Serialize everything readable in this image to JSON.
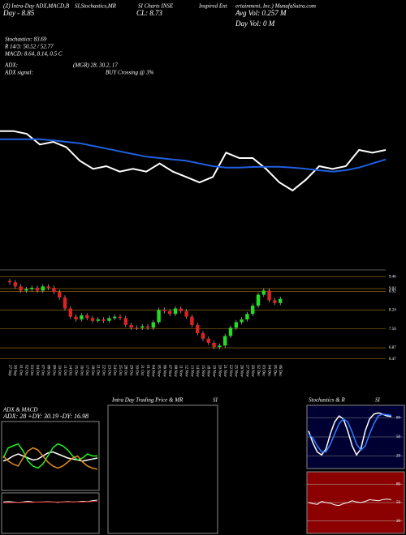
{
  "header": {
    "line1": [
      "(Z) Intra-Day ADX,MACD,B",
      "SI,Stochastics,MR",
      "SI Charts INSE",
      "Inspired Ent",
      "ertainment, Inc.) MunafaSutra.com"
    ],
    "day": "Day - 8.85",
    "close": "CL: 8.73",
    "avg_vol": "Avg Vol: 0.257 M",
    "day_vol": "Day Vol: 0  M",
    "stoch": "Stochastics: 83.69",
    "r": "R 14/3: 50.52 / 52.77",
    "macd": "MACD: 8.64, 8.14, 0.5 C",
    "adx": "ADX:",
    "adx_vals": "(MGR) 28, 30.2, 17",
    "adx_signal": "ADX  signal:",
    "signal": "BUY Crossing @ 3%"
  },
  "chart_data": [
    {
      "type": "line",
      "ylim": [
        6.8,
        9.8
      ],
      "series": [
        {
          "color": "#ffffff",
          "values": [
            9.3,
            9.3,
            9.2,
            8.8,
            8.9,
            8.7,
            8.2,
            7.9,
            8.0,
            7.8,
            7.9,
            7.8,
            8.1,
            7.8,
            7.6,
            7.4,
            7.6,
            8.5,
            8.3,
            8.3,
            7.9,
            7.4,
            7.1,
            7.5,
            8.0,
            7.9,
            8.0,
            8.6,
            8.5,
            8.6
          ]
        },
        {
          "color": "#1f5fe0",
          "values": [
            9.0,
            9.0,
            9.0,
            9.0,
            8.95,
            8.9,
            8.85,
            8.75,
            8.65,
            8.55,
            8.45,
            8.35,
            8.3,
            8.25,
            8.2,
            8.1,
            8.0,
            7.95,
            7.95,
            7.97,
            7.98,
            7.98,
            7.95,
            7.9,
            7.85,
            7.8,
            7.85,
            7.95,
            8.1,
            8.25
          ]
        }
      ]
    },
    {
      "type": "candlestick",
      "ylim": [
        6.4,
        9.7
      ],
      "yticks": [
        9.46,
        9.02,
        8.92,
        8.24,
        7.56,
        6.87,
        6.47
      ],
      "grid": true,
      "up_color": "#22dd22",
      "down_color": "#dd2222",
      "categories": [
        "27 Sep",
        "30 Sep",
        "01 Oct",
        "02 Oct",
        "03 Oct",
        "04 Oct",
        "07 Oct",
        "08 Oct",
        "09 Oct",
        "10 Oct",
        "11 Oct",
        "14 Oct",
        "15 Oct",
        "16 Oct",
        "17 Oct",
        "18 Oct",
        "21 Oct",
        "22 Oct",
        "23 Oct",
        "24 Oct",
        "25 Oct",
        "28 Oct",
        "29 Oct",
        "30 Oct",
        "31 Oct",
        "01 Nov",
        "04 Nov",
        "05 Nov",
        "06 Nov",
        "07 Nov",
        "08 Nov",
        "11 Nov",
        "12 Nov",
        "13 Nov",
        "14 Nov",
        "15 Nov",
        "18 Nov",
        "19 Nov",
        "20 Nov",
        "21 Nov",
        "22 Nov",
        "25 Nov",
        "26 Nov",
        "27 Nov",
        "29 Nov",
        "02 Dec",
        "03 Dec",
        "04 Dec",
        "05 Dec",
        "06 Dec"
      ],
      "open": [
        9.3,
        9.25,
        9.1,
        8.95,
        9.0,
        9.05,
        8.95,
        9.1,
        9.05,
        8.9,
        8.7,
        8.3,
        8.0,
        7.9,
        8.05,
        7.95,
        7.85,
        7.9,
        7.85,
        7.95,
        8.0,
        7.95,
        7.7,
        7.6,
        7.6,
        7.65,
        7.6,
        7.8,
        8.25,
        8.2,
        8.1,
        8.3,
        8.2,
        8.0,
        7.7,
        7.4,
        7.2,
        7.05,
        6.9,
        6.95,
        7.3,
        7.6,
        7.8,
        7.9,
        8.1,
        8.4,
        8.8,
        8.95,
        8.6,
        8.5
      ],
      "high": [
        9.38,
        9.33,
        9.18,
        9.08,
        9.13,
        9.13,
        9.18,
        9.18,
        9.13,
        8.98,
        8.78,
        8.38,
        8.08,
        8.13,
        8.13,
        8.03,
        7.98,
        7.98,
        8.03,
        8.08,
        8.08,
        8.03,
        7.78,
        7.68,
        7.73,
        7.73,
        7.88,
        8.33,
        8.33,
        8.28,
        8.38,
        8.38,
        8.28,
        8.08,
        7.78,
        7.48,
        7.28,
        7.13,
        7.03,
        7.38,
        7.68,
        7.88,
        7.98,
        8.18,
        8.48,
        8.88,
        9.03,
        9.03,
        8.68,
        8.73
      ],
      "low": [
        9.17,
        9.02,
        8.87,
        8.87,
        8.92,
        8.87,
        8.87,
        8.97,
        8.82,
        8.62,
        8.22,
        7.92,
        7.82,
        7.82,
        7.87,
        7.77,
        7.77,
        7.77,
        7.77,
        7.87,
        7.87,
        7.62,
        7.52,
        7.52,
        7.52,
        7.52,
        7.52,
        7.72,
        8.12,
        8.02,
        8.02,
        8.12,
        7.92,
        7.62,
        7.32,
        7.12,
        6.97,
        6.82,
        6.82,
        6.87,
        7.22,
        7.52,
        7.72,
        7.82,
        8.02,
        8.32,
        8.72,
        8.52,
        8.42,
        8.42
      ],
      "close": [
        9.25,
        9.1,
        8.95,
        9.0,
        9.05,
        8.95,
        9.1,
        9.05,
        8.9,
        8.7,
        8.3,
        8.0,
        7.9,
        8.05,
        7.95,
        7.85,
        7.9,
        7.85,
        7.95,
        8.0,
        7.95,
        7.7,
        7.6,
        7.6,
        7.65,
        7.6,
        7.8,
        8.25,
        8.2,
        8.1,
        8.3,
        8.2,
        8.0,
        7.7,
        7.4,
        7.2,
        7.05,
        6.9,
        6.95,
        7.3,
        7.6,
        7.8,
        7.9,
        8.1,
        8.4,
        8.8,
        8.95,
        8.6,
        8.5,
        8.65
      ]
    },
    {
      "type": "line",
      "title": "ADX & MACD",
      "subtitle": "ADX: 28  +DY: 30.19  -DY: 16.98",
      "ylim": [
        0,
        60
      ],
      "series": [
        {
          "color": "#ffffff",
          "values": [
            25,
            27,
            30,
            32,
            30,
            28,
            26,
            27,
            30,
            33,
            34,
            32,
            30,
            28,
            27,
            26,
            25,
            26,
            27,
            28
          ]
        },
        {
          "color": "#22ee22",
          "values": [
            28,
            38,
            40,
            42,
            35,
            25,
            20,
            18,
            22,
            30,
            38,
            42,
            40,
            36,
            30,
            26,
            28,
            32,
            30,
            30
          ]
        },
        {
          "color": "#e08a20",
          "values": [
            30,
            25,
            22,
            20,
            28,
            35,
            38,
            36,
            30,
            24,
            20,
            18,
            20,
            24,
            28,
            30,
            24,
            20,
            18,
            17
          ]
        }
      ]
    },
    {
      "type": "line",
      "ylim": [
        -1,
        1
      ],
      "series": [
        {
          "color": "#ffffff",
          "values": [
            0.6,
            0.62,
            0.6,
            0.58,
            0.6,
            0.63,
            0.6,
            0.59,
            0.6,
            0.61,
            0.6,
            0.58,
            0.6,
            0.62,
            0.6,
            0.61,
            0.63,
            0.62,
            0.66,
            0.7
          ]
        },
        {
          "color": "#dd2222",
          "values": [
            0.55,
            0.56,
            0.57,
            0.57,
            0.58,
            0.58,
            0.58,
            0.59,
            0.59,
            0.59,
            0.6,
            0.6,
            0.6,
            0.6,
            0.6,
            0.6,
            0.6,
            0.61,
            0.62,
            0.63
          ]
        }
      ]
    },
    {
      "type": "line",
      "title": "Intra Day Trading Price & MR",
      "subtitle": "SI"
    },
    {
      "type": "line",
      "title": "Stochastics & R",
      "subtitle": "SI",
      "ylim": [
        0,
        100
      ],
      "yticks": [
        80,
        50,
        20
      ],
      "series": [
        {
          "color": "#ffffff",
          "values": [
            60,
            40,
            25,
            20,
            30,
            55,
            75,
            85,
            80,
            60,
            35,
            20,
            30,
            60,
            80,
            88,
            90,
            88,
            85,
            84
          ]
        },
        {
          "color": "#2f7fff",
          "values": [
            55,
            48,
            35,
            25,
            25,
            38,
            55,
            72,
            80,
            75,
            58,
            38,
            28,
            35,
            55,
            72,
            85,
            88,
            87,
            86
          ]
        }
      ]
    },
    {
      "type": "line",
      "ylim": [
        0,
        100
      ],
      "yticks": [
        80,
        50,
        20
      ],
      "series": [
        {
          "color": "#ffffff",
          "values": [
            50,
            48,
            47,
            52,
            50,
            49,
            46,
            45,
            48,
            50,
            53,
            51,
            50,
            52,
            55,
            54,
            53,
            55,
            56,
            55
          ]
        }
      ]
    }
  ]
}
